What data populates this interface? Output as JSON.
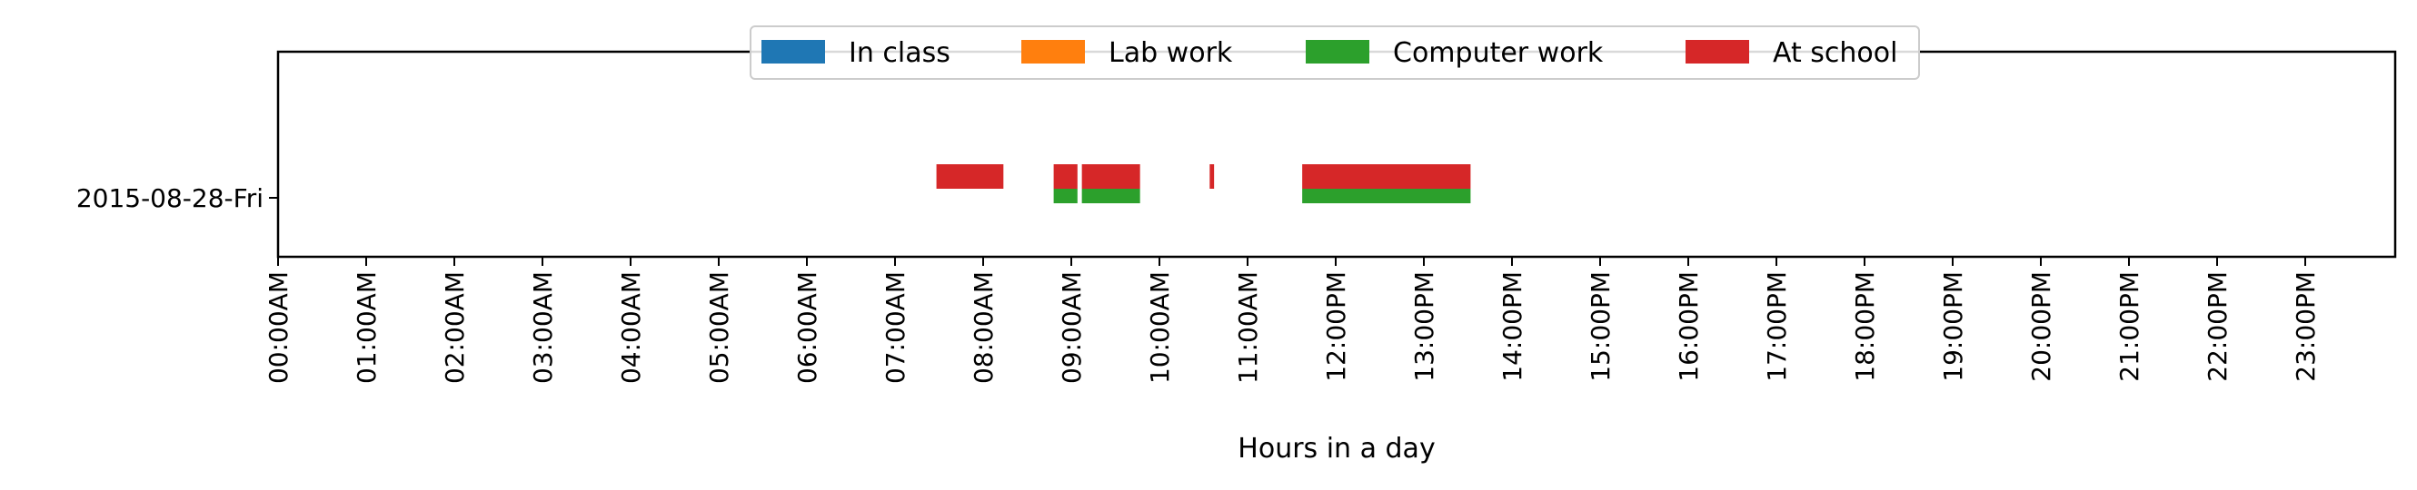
{
  "chart_data": {
    "type": "gantt-bar",
    "xlabel": "Hours in a day",
    "ylabel": "",
    "xlim": [
      0,
      24
    ],
    "x_tick_labels": [
      "00:00AM",
      "01:00AM",
      "02:00AM",
      "03:00AM",
      "04:00AM",
      "05:00AM",
      "06:00AM",
      "07:00AM",
      "08:00AM",
      "09:00AM",
      "10:00AM",
      "11:00AM",
      "12:00PM",
      "13:00PM",
      "14:00PM",
      "15:00PM",
      "16:00PM",
      "17:00PM",
      "18:00PM",
      "19:00PM",
      "20:00PM",
      "21:00PM",
      "22:00PM",
      "23:00PM"
    ],
    "categories": [
      "2015-08-28-Fri"
    ],
    "legend_placement": "top-center",
    "grid": false,
    "series": [
      {
        "name": "In class",
        "color": "#1f77b4",
        "intervals": []
      },
      {
        "name": "Lab work",
        "color": "#ff7f0e",
        "intervals": []
      },
      {
        "name": "Computer work",
        "color": "#2ca02c",
        "intervals": [
          [
            8.8,
            9.07
          ],
          [
            9.12,
            9.78
          ],
          [
            11.62,
            13.53
          ]
        ]
      },
      {
        "name": "At school",
        "color": "#d62728",
        "intervals": [
          [
            7.47,
            8.23
          ],
          [
            8.8,
            9.07
          ],
          [
            9.12,
            9.78
          ],
          [
            10.57,
            10.62
          ],
          [
            11.62,
            13.53
          ]
        ]
      }
    ]
  }
}
